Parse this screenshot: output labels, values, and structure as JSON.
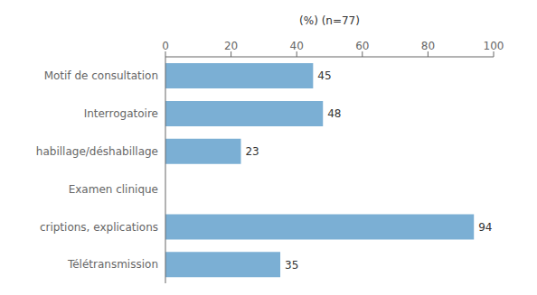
{
  "chart_data": {
    "type": "bar",
    "orientation": "horizontal",
    "xlabel": "(%) (n=77)",
    "categories": [
      "Télétransmission",
      "criptions, explications",
      "Examen clinique",
      "habillage/déshabillage",
      "Interrogatoire",
      "Motif de consultation"
    ],
    "values": [
      35,
      94,
      0,
      23,
      48,
      45
    ],
    "color": "#7bafd4",
    "xlim": [
      0,
      100
    ],
    "xticks": [
      0,
      20,
      40,
      60,
      80,
      100
    ],
    "data_labels": true,
    "grid": false
  }
}
